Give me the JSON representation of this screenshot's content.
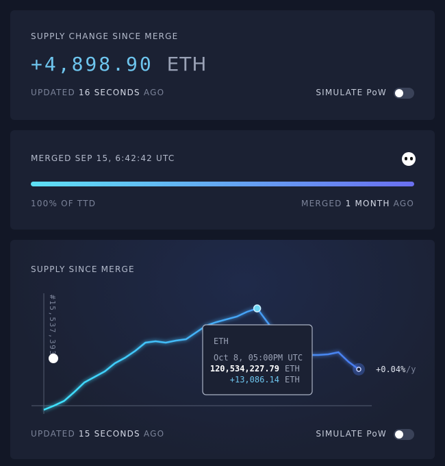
{
  "supply_card": {
    "label": "SUPPLY CHANGE SINCE MERGE",
    "value": "+4,898.90",
    "unit": "ETH",
    "updated_prefix": "UPDATED",
    "updated_emph": "16 SECONDS",
    "updated_suffix": "AGO",
    "toggle_label": "SIMULATE PoW"
  },
  "merge_card": {
    "label": "MERGED SEP 15, 6:42:42 UTC",
    "progress": 100,
    "progress_label": "100% OF TTD",
    "merged_prefix": "MERGED",
    "merged_emph": "1 MONTH",
    "merged_suffix": "AGO"
  },
  "chart": {
    "type": "line",
    "title": "SUPPLY SINCE MERGE",
    "block_label": "#15,537,393",
    "rate": "+0.04%",
    "rate_unit": "/y",
    "values": [
      -553,
      0,
      645,
      1844,
      3135,
      3872,
      4610,
      5716,
      6454,
      7376,
      8482,
      8667,
      8482,
      8759,
      8943,
      9865,
      10787,
      11248,
      11617,
      11986,
      12631,
      13086,
      11248,
      9404,
      8021,
      7283,
      6823,
      6823,
      6915,
      7192,
      5901,
      4899
    ],
    "ylim": [
      -800,
      14500
    ],
    "highlight": 21,
    "tooltip": {
      "title": "ETH",
      "date": "Oct 8, 05:00PM UTC",
      "supply": "120,534,227.79",
      "supply_unit": "ETH",
      "change": "+13,086.14",
      "change_unit": "ETH"
    },
    "updated_prefix": "UPDATED",
    "updated_emph": "15 SECONDS",
    "updated_suffix": "AGO",
    "toggle_label": "SIMULATE PoW"
  }
}
